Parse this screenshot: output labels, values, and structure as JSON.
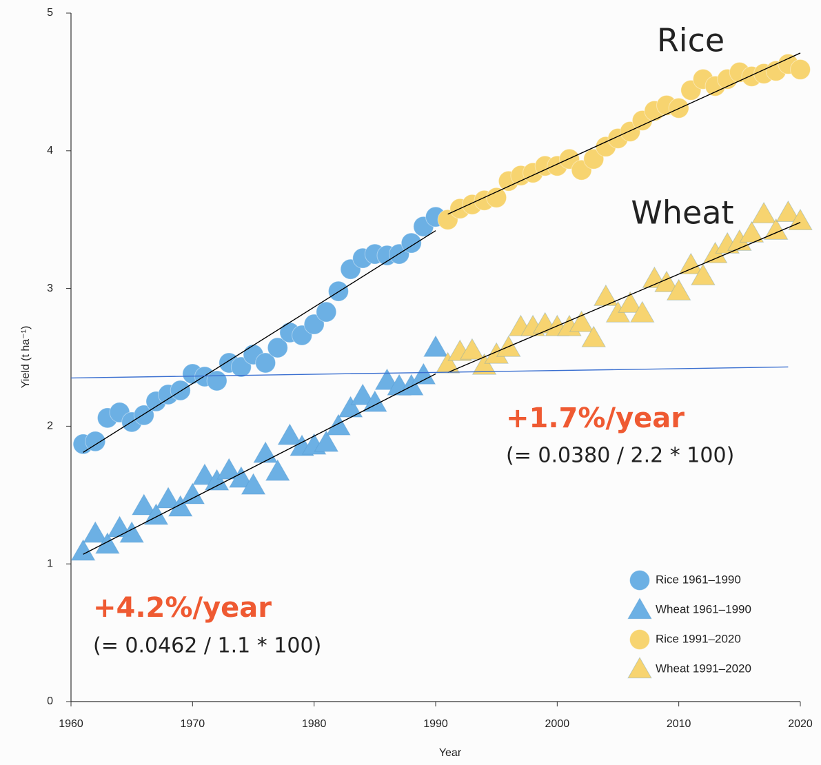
{
  "chart_data": {
    "type": "scatter",
    "xlabel": "Year",
    "ylabel": "Yield (t ha⁻¹)",
    "xlim": [
      1960,
      2020
    ],
    "xticks": [
      1960,
      1970,
      1980,
      1990,
      2000,
      2010,
      2020
    ],
    "ylim": [
      0,
      5
    ],
    "yticks": [
      0,
      1,
      2,
      3,
      4,
      5
    ],
    "legend": "lower right",
    "series": [
      {
        "name": "Rice 1961–1990",
        "color": "#6cb0e4",
        "marker": "circle",
        "x": [
          1961,
          1962,
          1963,
          1964,
          1965,
          1966,
          1967,
          1968,
          1969,
          1970,
          1971,
          1972,
          1973,
          1974,
          1975,
          1976,
          1977,
          1978,
          1979,
          1980,
          1981,
          1982,
          1983,
          1984,
          1985,
          1986,
          1987,
          1988,
          1989,
          1990
        ],
        "values": [
          1.87,
          1.89,
          2.06,
          2.1,
          2.03,
          2.08,
          2.18,
          2.23,
          2.26,
          2.38,
          2.36,
          2.33,
          2.46,
          2.43,
          2.52,
          2.46,
          2.57,
          2.68,
          2.66,
          2.74,
          2.83,
          2.98,
          3.14,
          3.22,
          3.25,
          3.24,
          3.25,
          3.33,
          3.45,
          3.52
        ]
      },
      {
        "name": "Wheat 1961–1990",
        "color": "#6cb0e4",
        "marker": "triangle",
        "x": [
          1961,
          1962,
          1963,
          1964,
          1965,
          1966,
          1967,
          1968,
          1969,
          1970,
          1971,
          1972,
          1973,
          1974,
          1975,
          1976,
          1977,
          1978,
          1979,
          1980,
          1981,
          1982,
          1983,
          1984,
          1985,
          1986,
          1987,
          1988,
          1989,
          1990
        ],
        "values": [
          1.09,
          1.22,
          1.14,
          1.26,
          1.22,
          1.42,
          1.35,
          1.47,
          1.41,
          1.5,
          1.64,
          1.6,
          1.68,
          1.62,
          1.57,
          1.8,
          1.67,
          1.93,
          1.85,
          1.86,
          1.88,
          2.0,
          2.13,
          2.22,
          2.17,
          2.33,
          2.29,
          2.29,
          2.37,
          2.57
        ]
      },
      {
        "name": "Rice 1991–2020",
        "color": "#f7d470",
        "marker": "circle",
        "x": [
          1991,
          1992,
          1993,
          1994,
          1995,
          1996,
          1997,
          1998,
          1999,
          2000,
          2001,
          2002,
          2003,
          2004,
          2005,
          2006,
          2007,
          2008,
          2009,
          2010,
          2011,
          2012,
          2013,
          2014,
          2015,
          2016,
          2017,
          2018,
          2019,
          2020
        ],
        "values": [
          3.5,
          3.58,
          3.61,
          3.64,
          3.66,
          3.78,
          3.82,
          3.84,
          3.89,
          3.89,
          3.94,
          3.86,
          3.94,
          4.03,
          4.09,
          4.14,
          4.22,
          4.29,
          4.33,
          4.31,
          4.44,
          4.52,
          4.47,
          4.52,
          4.57,
          4.54,
          4.56,
          4.58,
          4.63,
          4.59
        ]
      },
      {
        "name": "Wheat 1991–2020",
        "color": "#f7d470",
        "marker": "triangle",
        "x": [
          1991,
          1992,
          1993,
          1994,
          1995,
          1996,
          1997,
          1998,
          1999,
          2000,
          2001,
          2002,
          2003,
          2004,
          2005,
          2006,
          2007,
          2008,
          2009,
          2010,
          2011,
          2012,
          2013,
          2014,
          2015,
          2016,
          2017,
          2018,
          2019,
          2020
        ],
        "values": [
          2.45,
          2.54,
          2.55,
          2.44,
          2.52,
          2.57,
          2.72,
          2.72,
          2.74,
          2.72,
          2.72,
          2.75,
          2.64,
          2.94,
          2.82,
          2.89,
          2.82,
          3.07,
          3.04,
          2.98,
          3.17,
          3.09,
          3.25,
          3.32,
          3.34,
          3.4,
          3.54,
          3.42,
          3.55,
          3.49
        ]
      }
    ],
    "trend_lines": [
      {
        "color": "#000000",
        "x": [
          1961,
          1990
        ],
        "values": [
          1.81,
          3.42
        ]
      },
      {
        "color": "#000000",
        "x": [
          1991,
          2020
        ],
        "values": [
          3.54,
          4.71
        ]
      },
      {
        "color": "#000000",
        "x": [
          1961,
          1990
        ],
        "values": [
          1.07,
          2.38
        ]
      },
      {
        "color": "#000000",
        "x": [
          1991,
          2020
        ],
        "values": [
          2.39,
          3.48
        ]
      },
      {
        "color": "#3a6fd0",
        "x": [
          1960,
          2019
        ],
        "values": [
          2.35,
          2.43
        ]
      }
    ],
    "annotations": [
      "Rice",
      "Wheat",
      "+1.7%/year",
      "(= 0.0380 / 2.2 * 100)",
      "+4.2%/year",
      "(= 0.0462 / 1.1 * 100)"
    ]
  }
}
